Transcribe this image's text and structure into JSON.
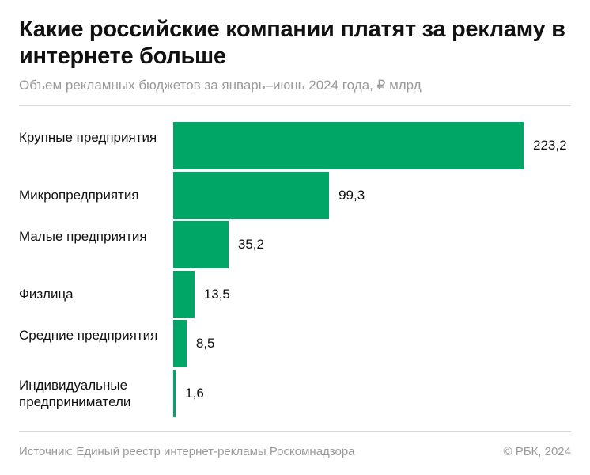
{
  "chart_data": {
    "type": "bar",
    "orientation": "horizontal",
    "title": "Какие российские компании платят за рекламу в интернете больше",
    "subtitle": "Объем рекламных бюджетов за январь–июнь 2024 года, ₽ млрд",
    "categories": [
      "Крупные предприятия",
      "Микропредприятия",
      "Малые предприятия",
      "Физлица",
      "Средние предприятия",
      "Индивидуальные предприниматели"
    ],
    "values": [
      223.2,
      99.3,
      35.2,
      13.5,
      8.5,
      1.6
    ],
    "value_labels": [
      "223,2",
      "99,3",
      "35,2",
      "13,5",
      "8,5",
      "1,6"
    ],
    "bar_color": "#00a665",
    "grid": false,
    "legend": "none"
  },
  "footer": {
    "source": "Источник: Единый реестр интернет-рекламы Роскомнадзора",
    "copyright": "© РБК, 2024"
  }
}
